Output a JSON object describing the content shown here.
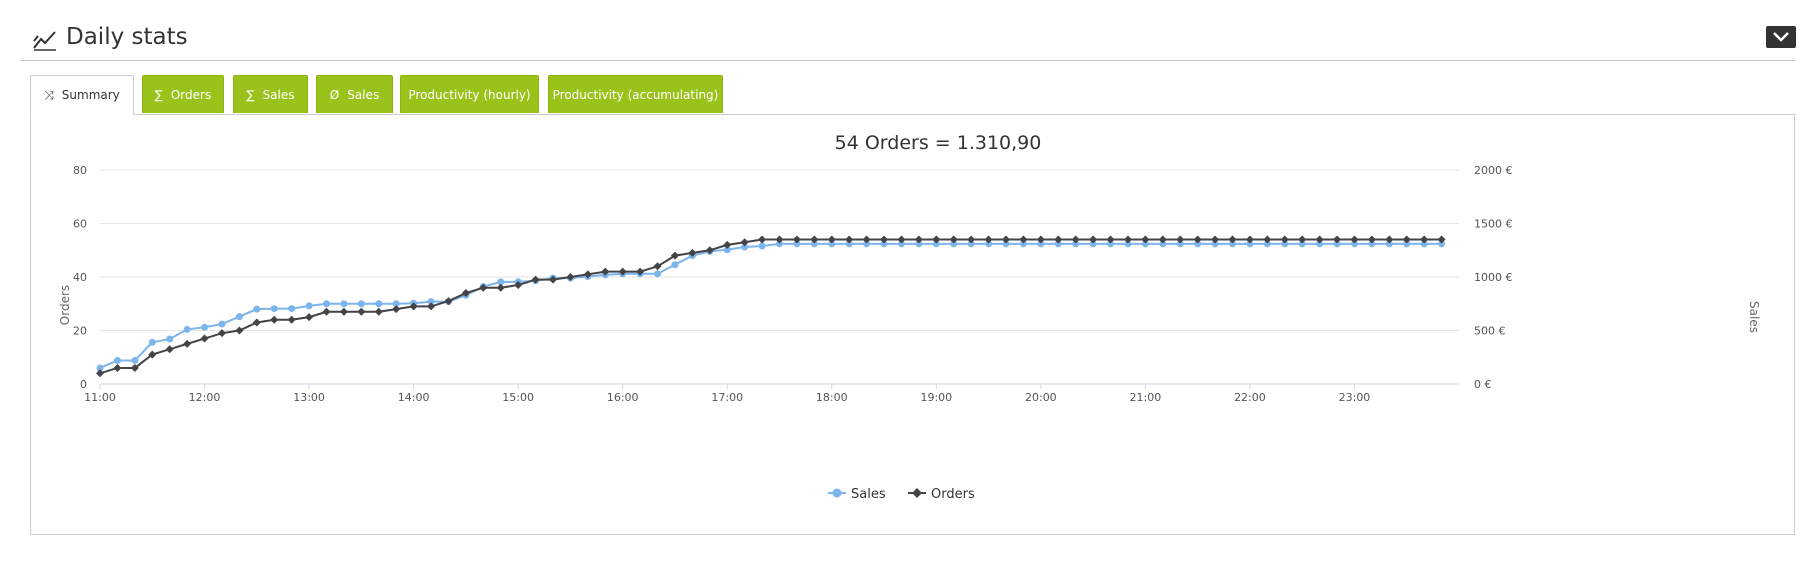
{
  "header": {
    "title": "Daily stats"
  },
  "tabs": [
    {
      "glyph": "⤨",
      "label": "Summary",
      "active": true
    },
    {
      "glyph": "∑",
      "label": "Orders",
      "active": false
    },
    {
      "glyph": "∑",
      "label": "Sales",
      "active": false
    },
    {
      "glyph": "Ø",
      "label": "Sales",
      "active": false
    },
    {
      "glyph": "",
      "label": "Productivity (hourly)",
      "active": false
    },
    {
      "glyph": "",
      "label": "Productivity (accumulating)",
      "active": false
    }
  ],
  "colors": {
    "accent": "#99c31a",
    "sales": "#7cb5ec",
    "orders": "#434348"
  },
  "chart_data": {
    "type": "line",
    "title": "54 Orders = 1.310,90",
    "ylabel": "Orders",
    "y2label": "Sales",
    "ylim": [
      0,
      80
    ],
    "y2lim": [
      0,
      2000
    ],
    "yticks": [
      "0",
      "20",
      "40",
      "60",
      "80"
    ],
    "y2ticks": [
      "0 €",
      "500 €",
      "1000 €",
      "1500 €",
      "2000 €"
    ],
    "xticks": [
      "11:00",
      "12:00",
      "13:00",
      "14:00",
      "15:00",
      "16:00",
      "17:00",
      "18:00",
      "19:00",
      "20:00",
      "21:00",
      "22:00",
      "23:00"
    ],
    "x_start_hour": 11,
    "x_step_min": 10,
    "grid": true,
    "legend": "bottom-center",
    "series": [
      {
        "name": "Sales",
        "axis": "right",
        "values": [
          150,
          220,
          220,
          390,
          420,
          510,
          530,
          560,
          630,
          700,
          705,
          705,
          730,
          750,
          750,
          750,
          750,
          750,
          755,
          770,
          770,
          830,
          910,
          955,
          955,
          965,
          990,
          990,
          1005,
          1020,
          1030,
          1030,
          1030,
          1115,
          1200,
          1240,
          1255,
          1280,
          1290,
          1310,
          1310,
          1310,
          1310,
          1310,
          1310,
          1310,
          1310,
          1310,
          1310,
          1310,
          1310,
          1310,
          1310,
          1310,
          1310,
          1310,
          1310,
          1310,
          1310,
          1310,
          1310,
          1310,
          1310,
          1310,
          1310,
          1310,
          1310,
          1310,
          1310,
          1310,
          1310,
          1310,
          1310,
          1310,
          1310,
          1310,
          1310,
          1310
        ]
      },
      {
        "name": "Orders",
        "axis": "left",
        "values": [
          4,
          6,
          6,
          11,
          13,
          15,
          17,
          19,
          20,
          23,
          24,
          24,
          25,
          27,
          27,
          27,
          27,
          28,
          29,
          29,
          31,
          34,
          36,
          36,
          37,
          39,
          39,
          40,
          41,
          42,
          42,
          42,
          44,
          48,
          49,
          50,
          52,
          53,
          54,
          54,
          54,
          54,
          54,
          54,
          54,
          54,
          54,
          54,
          54,
          54,
          54,
          54,
          54,
          54,
          54,
          54,
          54,
          54,
          54,
          54,
          54,
          54,
          54,
          54,
          54,
          54,
          54,
          54,
          54,
          54,
          54,
          54,
          54,
          54,
          54,
          54,
          54,
          54
        ]
      }
    ]
  }
}
